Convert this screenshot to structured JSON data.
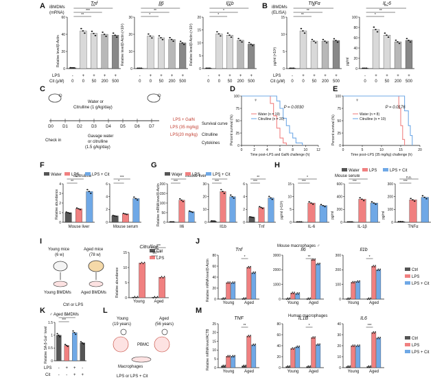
{
  "panels": {
    "A": {
      "label": "A",
      "header": [
        "iBMDMs",
        "(mRNA)"
      ],
      "ylabel": "Relative level/β-Actin",
      "row_lps": "LPS",
      "row_cit": "Cit (μM)",
      "lps_marks": [
        "-",
        "+",
        "+",
        "+",
        "+"
      ],
      "cit_marks": [
        "0",
        "0",
        "50",
        "200",
        "500"
      ]
    },
    "B": {
      "label": "B",
      "header": [
        "iBMDMs",
        "(ELISA)"
      ],
      "row_lps": "LPS",
      "row_cit": "Cit (μM)",
      "lps_marks": [
        "-",
        "+",
        "+",
        "+",
        "+"
      ],
      "cit_marks": [
        "0",
        "0",
        "50",
        "200",
        "500"
      ]
    },
    "C": {
      "label": "C",
      "water_box": [
        "Water or",
        "Citrulline (1 g/kg/day)"
      ],
      "days": [
        "D0",
        "D1",
        "D2",
        "D3",
        "D4",
        "D5",
        "D6",
        "D7"
      ],
      "check_in": "Check in",
      "gavage": [
        "Gavage water",
        "or citrulline",
        "(1.5 g/kg/day)"
      ],
      "challenges": [
        "LPS + GalN",
        "LPS (35 mg/kg)",
        "LPS(20 mg/kg)"
      ],
      "outcomes": [
        "Survival curve",
        "Citrulline",
        "Cytokines"
      ]
    },
    "D": {
      "label": "D",
      "note": "♀"
    },
    "E": {
      "label": "E",
      "note": "♀"
    },
    "F": {
      "label": "F",
      "title": "Citrulline",
      "ylabel": "Relative abundance"
    },
    "G": {
      "label": "G",
      "title": "Mouse liver",
      "ylabel": "Relative mRNA level/β-Actin"
    },
    "H": {
      "label": "H",
      "title": "Mouse serum"
    },
    "I": {
      "label": "I",
      "young": [
        "Young mice",
        "(6 w)"
      ],
      "aged": [
        "Aged mice",
        "(78 w)"
      ],
      "young_bmdm": "Young BMDMs",
      "aged_bmdm": "Aged BMDMs",
      "treat": "Ctrl or LPS"
    },
    "J": {
      "label": "J",
      "title": "Mouse macrophages ♂",
      "ylabel": "Relative mRNA level/β-Actin"
    },
    "K": {
      "label": "K",
      "title": "♂ Aged BMDMs",
      "ylabel": "Relative SA-β-Gal⁺ level",
      "row_lps": "LPS",
      "row_cit": "Cit",
      "lps_marks": [
        "-",
        "+",
        "+",
        "-"
      ],
      "cit_marks": [
        "-",
        "-",
        "+",
        "+"
      ]
    },
    "L": {
      "label": "L",
      "young": [
        "Young",
        "(19 years)"
      ],
      "aged": [
        "Aged",
        "(56 years)"
      ],
      "pbmc": "PBMC",
      "macro": "Macrophages",
      "treat": "LPS or LPS + Cit"
    },
    "M": {
      "label": "M",
      "title": "Human macrophages",
      "ylabel": "Relative mRNA level/ACTB"
    }
  },
  "legends": {
    "water_lps_cit": [
      "Water",
      "LPS",
      "LPS + Cit"
    ],
    "ctrl_lps": [
      "Ctrl",
      "LPS"
    ],
    "ctrl_lps_cit": [
      "Ctrl",
      "LPS",
      "LPS + Cit"
    ],
    "survival": [
      "Water",
      "Citrulline"
    ]
  },
  "colors": {
    "ctrl": "#555555",
    "water": "#555555",
    "lps": "#f08080",
    "cit": "#6fa8e6",
    "grey_light": "#d9d9d9",
    "grey_mid": "#b8b8b8",
    "grey_dark": "#888888"
  },
  "chart_data": [
    {
      "id": "A1",
      "type": "bar",
      "title": "Tnf",
      "categories": [
        "0",
        "0",
        "50",
        "200",
        "500"
      ],
      "values": [
        1,
        44,
        41,
        40,
        39
      ],
      "ylim": [
        0,
        60
      ],
      "yticks": [
        0,
        20,
        40,
        60
      ],
      "sig": [
        "**",
        "***",
        "***"
      ]
    },
    {
      "id": "A2",
      "type": "bar",
      "title": "Il6",
      "ylabel": "Relative level/β-Actin (×10²)",
      "categories": [
        "0",
        "0",
        "50",
        "200",
        "500"
      ],
      "values": [
        0.2,
        19,
        18,
        17,
        15
      ],
      "ylim": [
        0,
        30
      ],
      "yticks": [
        0,
        10,
        20,
        30
      ],
      "sig": [
        "*",
        "**",
        "***"
      ]
    },
    {
      "id": "A3",
      "type": "bar",
      "title": "Il1b",
      "ylabel": "Relative level/β-Actin (×10³)",
      "categories": [
        "0",
        "0",
        "50",
        "200",
        "500"
      ],
      "values": [
        0.1,
        13.5,
        13,
        11,
        9.5
      ],
      "ylim": [
        0,
        20
      ],
      "yticks": [
        0,
        5,
        10,
        15,
        20
      ],
      "sig": [
        "*",
        "*",
        "***"
      ]
    },
    {
      "id": "B1",
      "type": "bar",
      "title": "TNFα",
      "ylabel": "pg/ml (×10³)",
      "categories": [
        "0",
        "0",
        "50",
        "200",
        "500"
      ],
      "values": [
        0,
        11,
        8,
        8,
        8.2
      ],
      "ylim": [
        0,
        15
      ],
      "yticks": [
        0,
        5,
        10,
        15
      ],
      "sig": [
        "**",
        "**",
        "**"
      ]
    },
    {
      "id": "B2",
      "type": "bar",
      "title": "IL-6",
      "ylabel": "pg/ml",
      "categories": [
        "0",
        "0",
        "50",
        "200",
        "500"
      ],
      "values": [
        0,
        76,
        65,
        52,
        55
      ],
      "ylim": [
        0,
        100
      ],
      "yticks": [
        0,
        20,
        40,
        60,
        80,
        100
      ],
      "sig": [
        "*",
        "**",
        "***"
      ]
    },
    {
      "id": "D",
      "type": "line",
      "xlabel": "Time post–LPS and GalN challenge (h)",
      "ylabel": "Percent survival (%)",
      "xlim": [
        0,
        12
      ],
      "xticks": [
        0,
        2,
        4,
        6,
        8,
        10,
        12
      ],
      "ylim": [
        0,
        100
      ],
      "yticks": [
        0,
        25,
        50,
        75,
        100
      ],
      "pvalue": "P = 0.0030",
      "series": [
        {
          "name": "Water (n = 19)",
          "x": [
            0,
            4,
            4.5,
            5,
            5.5,
            6,
            6.5,
            7
          ],
          "y": [
            100,
            100,
            85,
            60,
            35,
            15,
            5,
            0
          ]
        },
        {
          "name": "Citrulline (n = 20)",
          "x": [
            0,
            5,
            5.5,
            6,
            6.5,
            7,
            7.5,
            8,
            8.5,
            9.5
          ],
          "y": [
            100,
            100,
            90,
            75,
            55,
            40,
            25,
            15,
            5,
            0
          ]
        }
      ]
    },
    {
      "id": "E",
      "type": "line",
      "xlabel": "Time post–LPS (35 mg/kg) challenge (h)",
      "ylabel": "Percent survival (%)",
      "xlim": [
        0,
        20
      ],
      "xticks": [
        0,
        5,
        10,
        15,
        20
      ],
      "ylim": [
        0,
        100
      ],
      "yticks": [
        0,
        25,
        50,
        75,
        100
      ],
      "pvalue": "P = 0.0176",
      "series": [
        {
          "name": "Water (n = 8)",
          "x": [
            0,
            14,
            14.5,
            15,
            15.5,
            16
          ],
          "y": [
            100,
            100,
            75,
            40,
            12,
            0
          ]
        },
        {
          "name": "Citrulline (n = 10)",
          "x": [
            0,
            15.5,
            16,
            17,
            17.5,
            18
          ],
          "y": [
            100,
            100,
            70,
            40,
            20,
            0
          ]
        }
      ]
    },
    {
      "id": "F1",
      "type": "bar",
      "xlabel": "Mouse liver",
      "categories": [
        "Water",
        "LPS",
        "LPS + Cit"
      ],
      "values": [
        1.0,
        1.4,
        3.2
      ],
      "ylim": [
        0,
        4
      ],
      "yticks": [
        0,
        1,
        2,
        3,
        4
      ],
      "sig": [
        "**",
        "***"
      ]
    },
    {
      "id": "F2",
      "type": "bar",
      "xlabel": "Mouse serum",
      "categories": [
        "Water",
        "LPS",
        "LPS + Cit"
      ],
      "values": [
        1.0,
        1.3,
        3.7
      ],
      "ylim": [
        0,
        6
      ],
      "yticks": [
        0,
        2,
        4,
        6
      ],
      "sig": [
        "*",
        "***"
      ]
    },
    {
      "id": "G1",
      "type": "bar",
      "xlabel": "Il6",
      "categories": [
        "Water",
        "LPS",
        "LPS + Cit"
      ],
      "values": [
        2,
        115,
        55
      ],
      "ylim": [
        0,
        200
      ],
      "yticks": [
        0,
        50,
        100,
        150,
        200
      ],
      "sig": [
        "***",
        "*"
      ]
    },
    {
      "id": "G2",
      "type": "bar",
      "xlabel": "Il1b",
      "categories": [
        "Water",
        "LPS",
        "LPS + Cit"
      ],
      "values": [
        1,
        24,
        20
      ],
      "ylim": [
        0,
        30
      ],
      "yticks": [
        0,
        10,
        20,
        30
      ],
      "sig": [
        "***",
        "*"
      ]
    },
    {
      "id": "G3",
      "type": "bar",
      "xlabel": "Tnf",
      "categories": [
        "Water",
        "LPS",
        "LPS + Cit"
      ],
      "values": [
        0.8,
        2.3,
        3.8
      ],
      "ylim": [
        0,
        6
      ],
      "yticks": [
        0,
        2,
        4,
        6
      ],
      "sig": [
        "***",
        "**"
      ]
    },
    {
      "id": "H1",
      "type": "bar",
      "xlabel": "IL-6",
      "ylabel": "pg/ml (×10³)",
      "categories": [
        "Water",
        "LPS",
        "LPS + Cit"
      ],
      "values": [
        0.1,
        7.5,
        6.5
      ],
      "ylim": [
        0,
        15
      ],
      "yticks": [
        0,
        5,
        10,
        15
      ],
      "sig": [
        "***",
        "*"
      ]
    },
    {
      "id": "H2",
      "type": "bar",
      "xlabel": "IL-1β",
      "ylabel": "pg/ml",
      "categories": [
        "Water",
        "LPS",
        "LPS + Cit"
      ],
      "values": [
        5,
        360,
        300
      ],
      "ylim": [
        0,
        600
      ],
      "yticks": [
        0,
        200,
        400,
        600
      ],
      "sig": [
        "***",
        "*"
      ]
    },
    {
      "id": "H3",
      "type": "bar",
      "xlabel": "TNFα",
      "ylabel": "pg/ml",
      "categories": [
        "Water",
        "LPS",
        "LPS + Cit"
      ],
      "values": [
        5,
        175,
        195
      ],
      "ylim": [
        0,
        300
      ],
      "yticks": [
        0,
        100,
        200,
        300
      ],
      "sig": [
        "***",
        "n.s."
      ]
    },
    {
      "id": "I",
      "type": "bar",
      "title": "Citrulline",
      "ylabel": "Relative abundance",
      "categories": [
        "Young",
        "Aged"
      ],
      "series": [
        {
          "name": "Ctrl",
          "values": [
            0.2,
            0.15
          ]
        },
        {
          "name": "LPS",
          "values": [
            11.5,
            6.8
          ]
        }
      ],
      "ylim": [
        0,
        15
      ],
      "yticks": [
        0,
        5,
        10,
        15
      ],
      "sig": [
        "***",
        "***",
        "***"
      ]
    },
    {
      "id": "J1",
      "type": "bar",
      "title": "Tnf",
      "categories": [
        "Young",
        "Aged"
      ],
      "series": [
        {
          "name": "Ctrl",
          "values": [
            1,
            1
          ]
        },
        {
          "name": "LPS",
          "values": [
            30,
            58
          ]
        },
        {
          "name": "LPS + Cit",
          "values": [
            30,
            48
          ]
        }
      ],
      "ylim": [
        0,
        80
      ],
      "yticks": [
        0,
        20,
        40,
        60,
        80
      ],
      "sig": [
        "*"
      ]
    },
    {
      "id": "J2",
      "type": "bar",
      "title": "Il6",
      "categories": [
        "Young",
        "Aged"
      ],
      "series": [
        {
          "name": "Ctrl",
          "values": [
            5,
            5
          ]
        },
        {
          "name": "LPS",
          "values": [
            420,
            2700
          ]
        },
        {
          "name": "LPS + Cit",
          "values": [
            380,
            2400
          ]
        }
      ],
      "ylim": [
        0,
        3000
      ],
      "yticks": [
        0,
        1000,
        2000,
        3000
      ],
      "sig": [
        "**"
      ]
    },
    {
      "id": "J3",
      "type": "bar",
      "title": "Il1b",
      "categories": [
        "Young",
        "Aged"
      ],
      "series": [
        {
          "name": "Ctrl",
          "values": [
            2,
            2
          ]
        },
        {
          "name": "LPS",
          "values": [
            115,
            225
          ]
        },
        {
          "name": "LPS + Cit",
          "values": [
            120,
            200
          ]
        }
      ],
      "ylim": [
        0,
        300
      ],
      "yticks": [
        0,
        100,
        200,
        300
      ],
      "sig": [
        "*"
      ]
    },
    {
      "id": "K",
      "type": "bar",
      "categories": [
        "1",
        "2",
        "3",
        "4"
      ],
      "values": [
        1.0,
        0.6,
        1.1,
        0.7
      ],
      "ylim": [
        0,
        1.5
      ],
      "yticks": [
        0,
        0.5,
        1.0,
        1.5
      ],
      "sig": [
        "***",
        "*"
      ]
    },
    {
      "id": "M1",
      "type": "bar",
      "title": "TNF",
      "categories": [
        "Young",
        "Aged"
      ],
      "series": [
        {
          "name": "Ctrl",
          "values": [
            1,
            1
          ]
        },
        {
          "name": "LPS",
          "values": [
            6.5,
            18
          ]
        },
        {
          "name": "LPS + Cit",
          "values": [
            6.5,
            13
          ]
        }
      ],
      "ylim": [
        0,
        25
      ],
      "yticks": [
        0,
        5,
        10,
        15,
        20,
        25
      ],
      "sig": [
        "**"
      ]
    },
    {
      "id": "M2",
      "type": "bar",
      "title": "IL1B",
      "categories": [
        "Young",
        "Aged"
      ],
      "series": [
        {
          "name": "Ctrl",
          "values": [
            2,
            2
          ]
        },
        {
          "name": "LPS",
          "values": [
            35,
            55
          ]
        },
        {
          "name": "LPS + Cit",
          "values": [
            38,
            42
          ]
        }
      ],
      "ylim": [
        0,
        80
      ],
      "yticks": [
        0,
        20,
        40,
        60,
        80
      ],
      "sig": [
        "*"
      ]
    },
    {
      "id": "M3",
      "type": "bar",
      "title": "IL6",
      "categories": [
        "Young",
        "Aged"
      ],
      "series": [
        {
          "name": "Ctrl",
          "values": [
            1,
            1
          ]
        },
        {
          "name": "LPS",
          "values": [
            20,
            32
          ]
        },
        {
          "name": "LPS + Cit",
          "values": [
            20,
            27
          ]
        }
      ],
      "ylim": [
        0,
        40
      ],
      "yticks": [
        0,
        10,
        20,
        30,
        40
      ],
      "sig": [
        "***"
      ]
    }
  ]
}
